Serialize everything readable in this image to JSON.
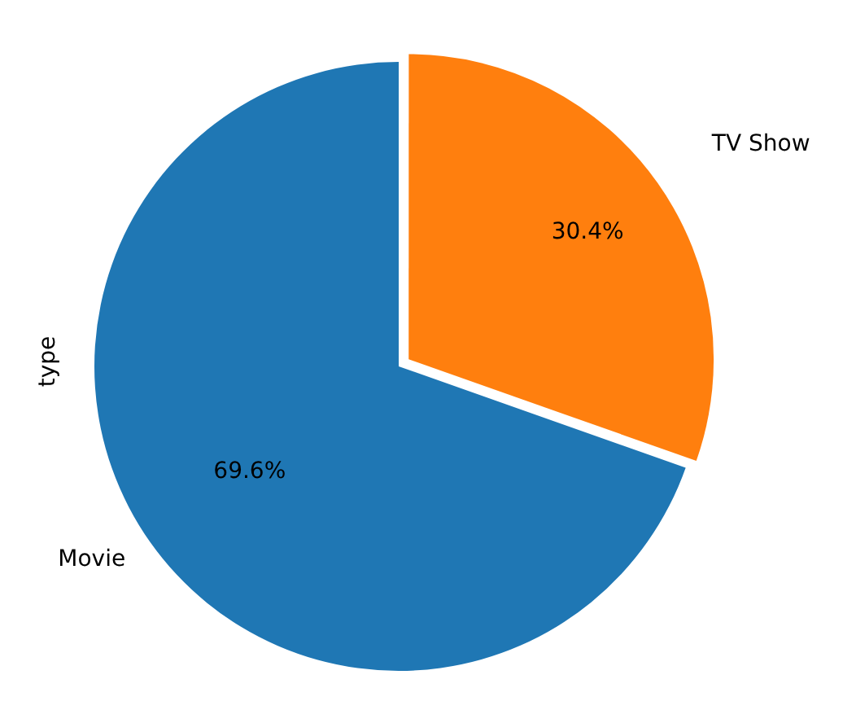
{
  "chart_data": {
    "type": "pie",
    "ylabel": "type",
    "categories": [
      "Movie",
      "TV Show"
    ],
    "values": [
      69.6,
      30.4
    ],
    "colors": [
      "#1f77b4",
      "#ff7f0e"
    ],
    "value_labels": [
      "69.6%",
      "30.4%"
    ],
    "legend": false
  }
}
